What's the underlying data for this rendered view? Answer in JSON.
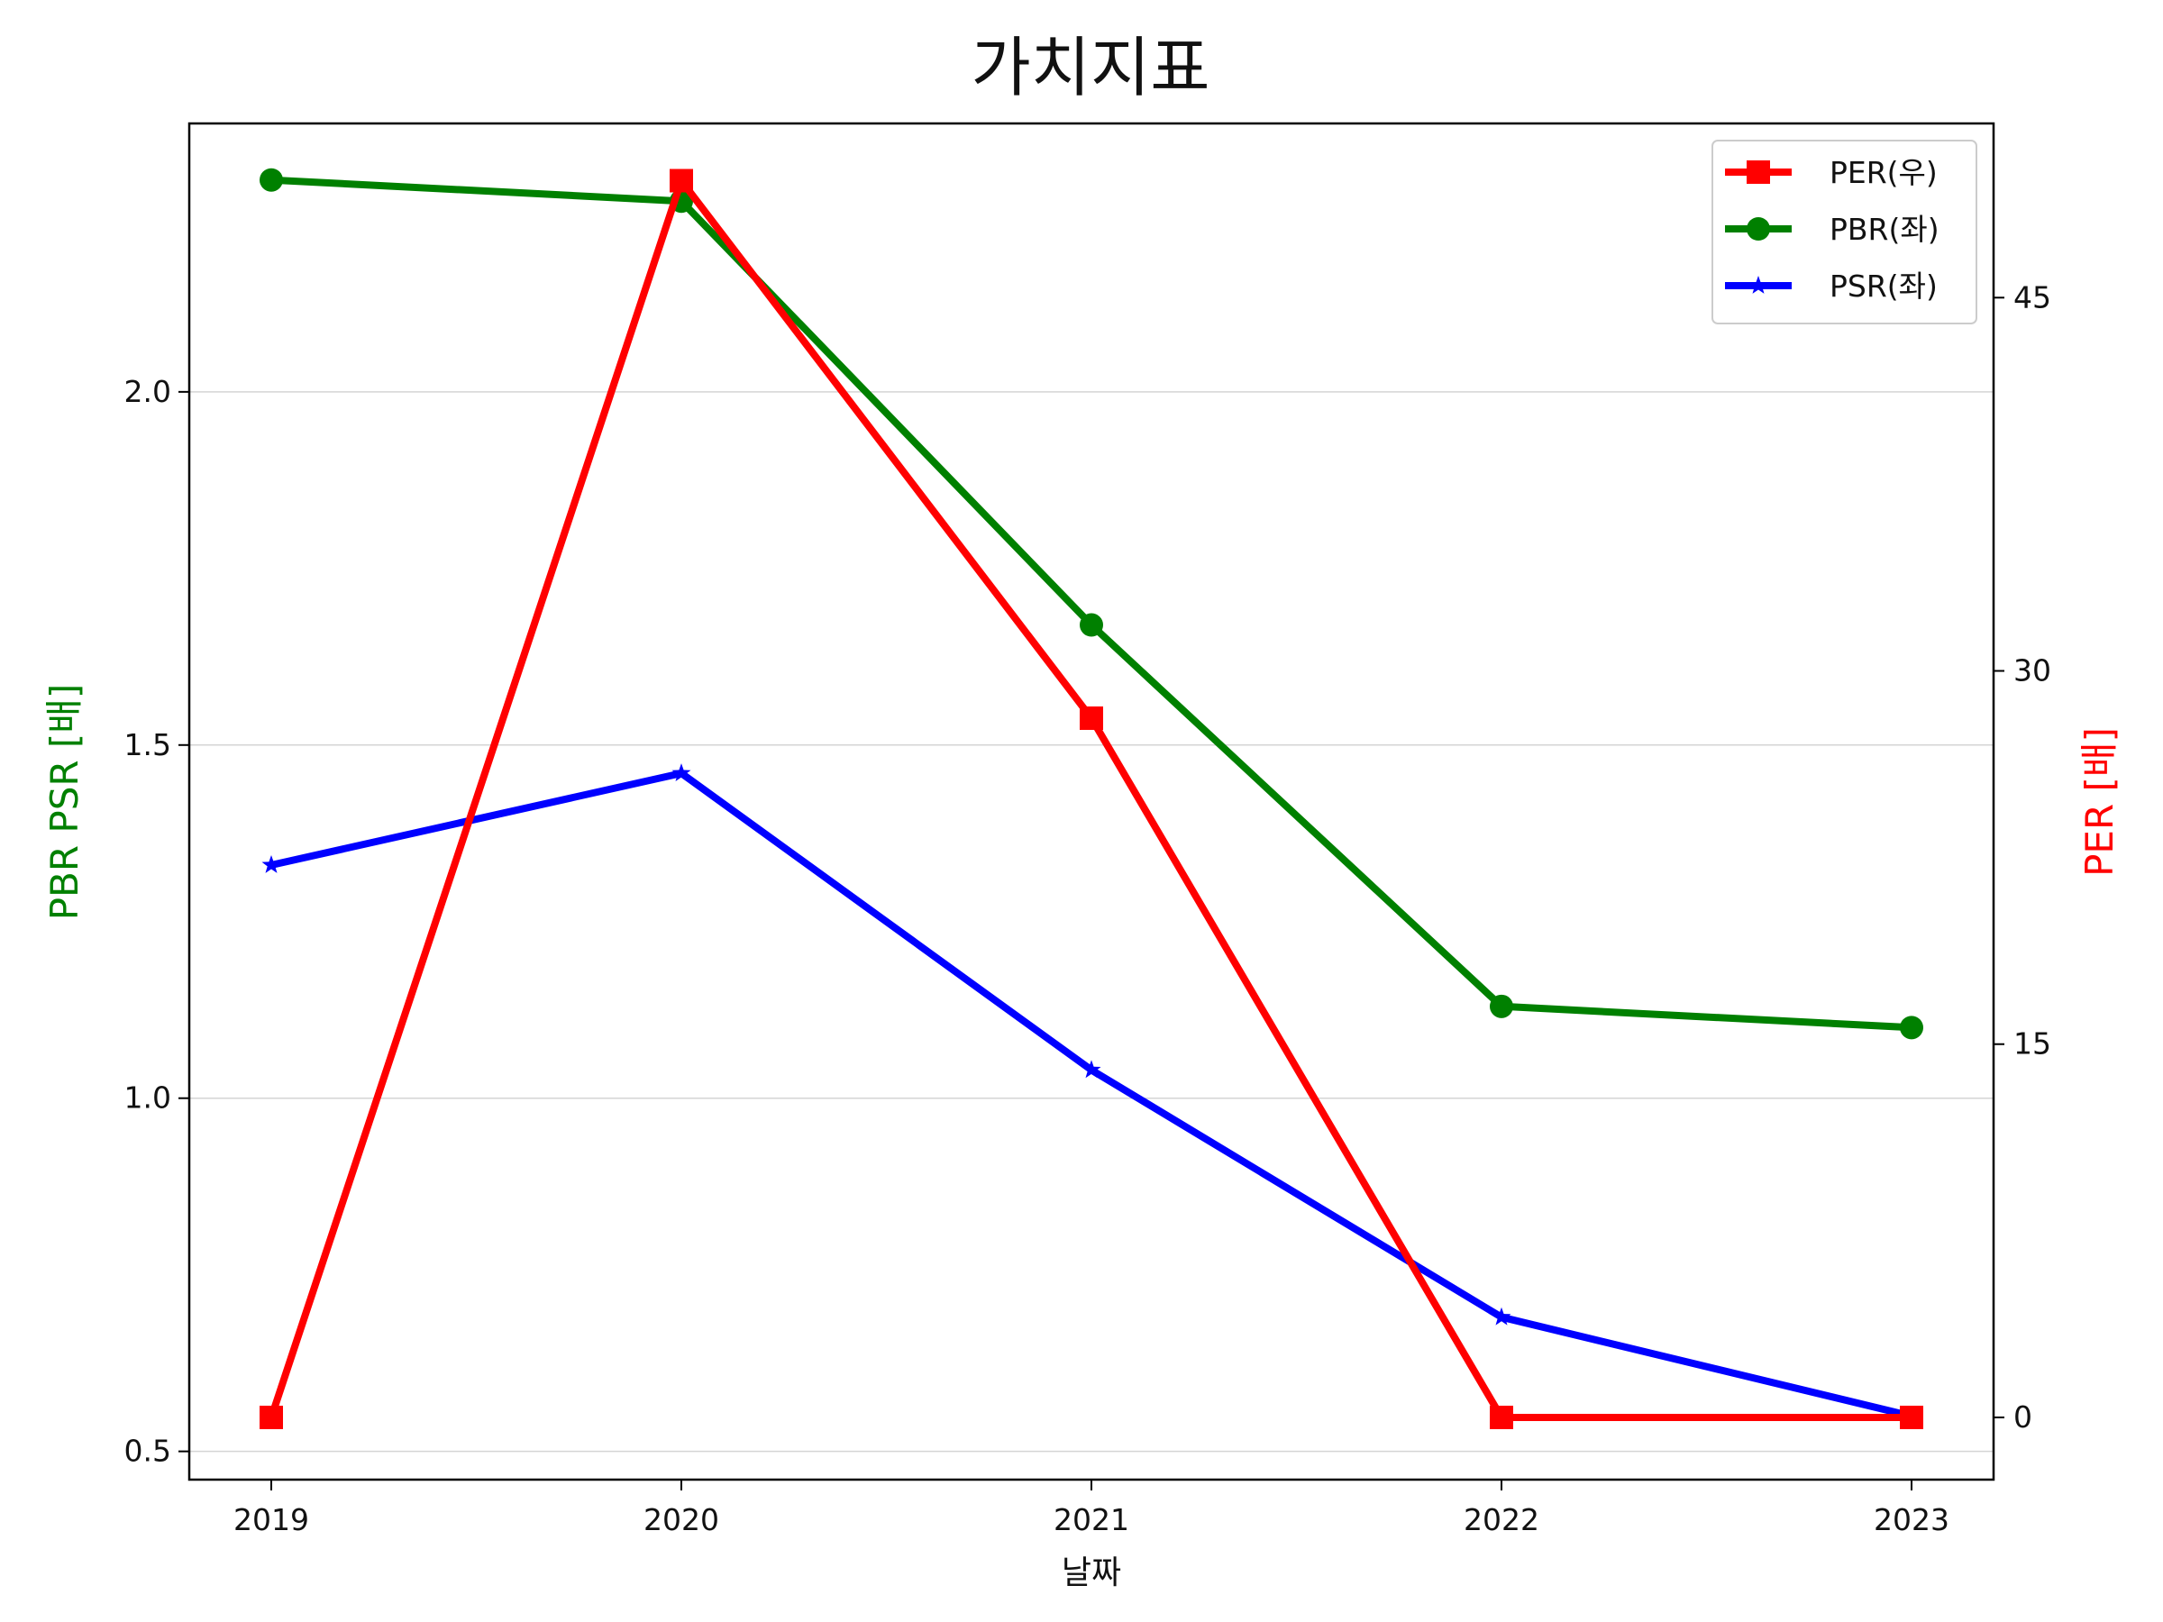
{
  "chart_data": {
    "type": "line",
    "title": "가치지표",
    "xlabel": "날짜",
    "ylabel_left": "PBR PSR [배]",
    "ylabel_right": "PER [배]",
    "categories": [
      "2019",
      "2020",
      "2021",
      "2022",
      "2023"
    ],
    "y_left": {
      "lim": [
        0.46,
        2.38
      ],
      "ticks": [
        0.5,
        1.0,
        1.5,
        2.0
      ],
      "tick_labels": [
        "0.5",
        "1.0",
        "1.5",
        "2.0"
      ],
      "color": "#008000"
    },
    "y_right": {
      "lim": [
        -2.5,
        52.0
      ],
      "ticks": [
        0,
        15,
        30,
        45
      ],
      "tick_labels": [
        "0",
        "15",
        "30",
        "45"
      ],
      "color": "#ff0000"
    },
    "grid": "horizontal",
    "legend_position": "top-right",
    "series": [
      {
        "name": "PER(우)",
        "axis": "right",
        "color": "#ff0000",
        "marker": "square",
        "values": [
          0.0,
          49.7,
          28.1,
          0.0,
          0.0
        ]
      },
      {
        "name": "PBR(좌)",
        "axis": "left",
        "color": "#008000",
        "marker": "circle",
        "values": [
          2.3,
          2.27,
          1.67,
          1.13,
          1.1
        ]
      },
      {
        "name": "PSR(좌)",
        "axis": "left",
        "color": "#0000ff",
        "marker": "star",
        "values": [
          1.33,
          1.46,
          1.04,
          0.69,
          0.55
        ]
      }
    ]
  }
}
